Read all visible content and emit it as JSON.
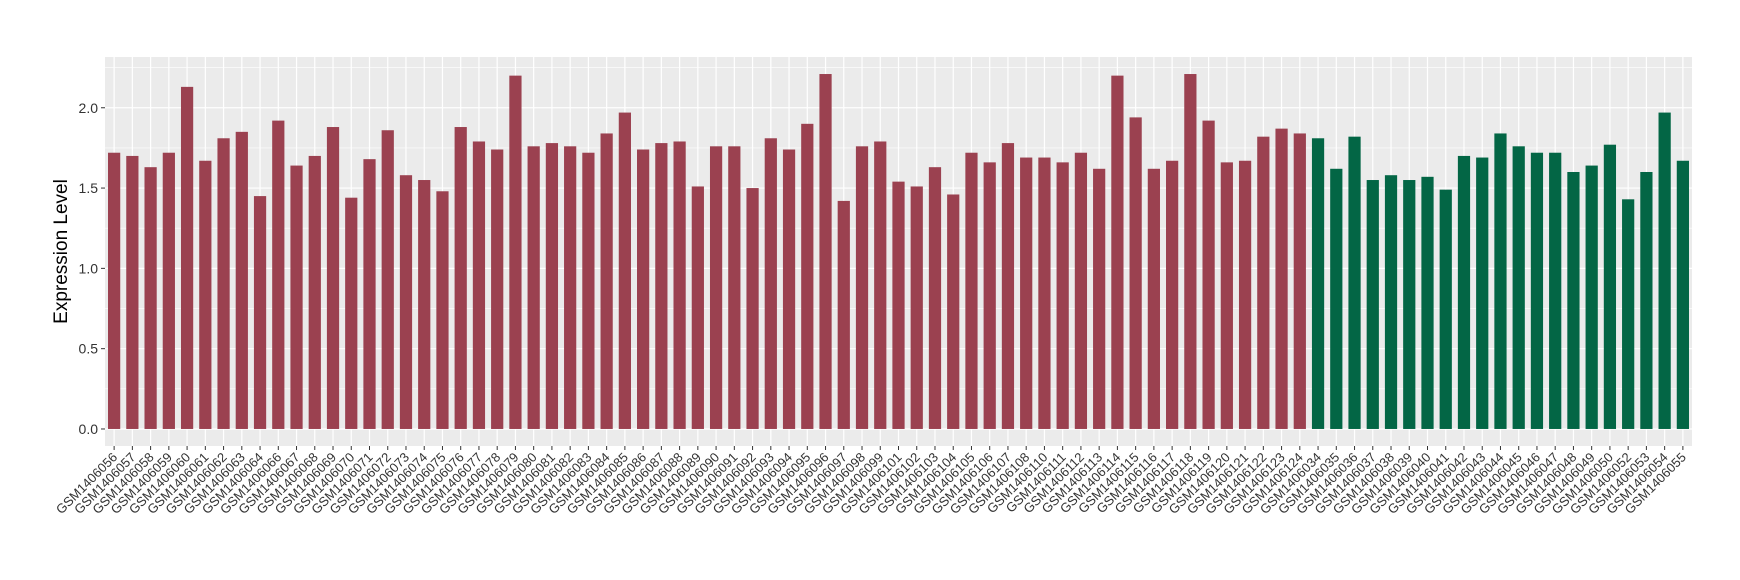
{
  "chart_data": {
    "type": "bar",
    "title": "",
    "xlabel": "",
    "ylabel": "Expression Level",
    "ylim": [
      -0.106,
      2.316
    ],
    "yticks": [
      "0.0",
      "0.5",
      "1.0",
      "1.5",
      "2.0"
    ],
    "grid": true,
    "legend": "none",
    "colors": {
      "group1": "#9B4150",
      "group2": "#036645",
      "panel": "#EBEBEB",
      "grid": "#FFFFFF"
    },
    "categories": [
      "GSM1406056",
      "GSM1406057",
      "GSM1406058",
      "GSM1406059",
      "GSM1406060",
      "GSM1406061",
      "GSM1406062",
      "GSM1406063",
      "GSM1406064",
      "GSM1406066",
      "GSM1406067",
      "GSM1406068",
      "GSM1406069",
      "GSM1406070",
      "GSM1406071",
      "GSM1406072",
      "GSM1406073",
      "GSM1406074",
      "GSM1406075",
      "GSM1406076",
      "GSM1406077",
      "GSM1406078",
      "GSM1406079",
      "GSM1406080",
      "GSM1406081",
      "GSM1406082",
      "GSM1406083",
      "GSM1406084",
      "GSM1406085",
      "GSM1406086",
      "GSM1406087",
      "GSM1406088",
      "GSM1406089",
      "GSM1406090",
      "GSM1406091",
      "GSM1406092",
      "GSM1406093",
      "GSM1406094",
      "GSM1406095",
      "GSM1406096",
      "GSM1406097",
      "GSM1406098",
      "GSM1406099",
      "GSM1406101",
      "GSM1406102",
      "GSM1406103",
      "GSM1406104",
      "GSM1406105",
      "GSM1406106",
      "GSM1406107",
      "GSM1406108",
      "GSM1406110",
      "GSM1406111",
      "GSM1406112",
      "GSM1406113",
      "GSM1406114",
      "GSM1406115",
      "GSM1406116",
      "GSM1406117",
      "GSM1406118",
      "GSM1406119",
      "GSM1406120",
      "GSM1406121",
      "GSM1406122",
      "GSM1406123",
      "GSM1406124",
      "GSM1406034",
      "GSM1406035",
      "GSM1406036",
      "GSM1406037",
      "GSM1406038",
      "GSM1406039",
      "GSM1406040",
      "GSM1406041",
      "GSM1406042",
      "GSM1406043",
      "GSM1406044",
      "GSM1406045",
      "GSM1406046",
      "GSM1406047",
      "GSM1406048",
      "GSM1406049",
      "GSM1406050",
      "GSM1406052",
      "GSM1406053",
      "GSM1406054",
      "GSM1406055"
    ],
    "values": [
      1.72,
      1.7,
      1.63,
      1.72,
      2.13,
      1.67,
      1.81,
      1.85,
      1.45,
      1.92,
      1.64,
      1.7,
      1.88,
      1.44,
      1.68,
      1.86,
      1.58,
      1.55,
      1.48,
      1.88,
      1.79,
      1.74,
      2.2,
      1.76,
      1.78,
      1.76,
      1.72,
      1.84,
      1.97,
      1.74,
      1.78,
      1.79,
      1.51,
      1.76,
      1.76,
      1.5,
      1.81,
      1.74,
      1.9,
      2.21,
      1.42,
      1.76,
      1.79,
      1.54,
      1.51,
      1.63,
      1.46,
      1.72,
      1.66,
      1.78,
      1.69,
      1.69,
      1.66,
      1.72,
      1.62,
      2.2,
      1.94,
      1.62,
      1.67,
      2.21,
      1.92,
      1.66,
      1.67,
      1.82,
      1.87,
      1.84,
      1.81,
      1.62,
      1.82,
      1.55,
      1.58,
      1.55,
      1.57,
      1.49,
      1.7,
      1.69,
      1.84,
      1.76,
      1.72,
      1.72,
      1.6,
      1.64,
      1.77,
      1.43,
      1.6,
      1.97,
      1.67
    ],
    "groups": [
      "group1",
      "group1",
      "group1",
      "group1",
      "group1",
      "group1",
      "group1",
      "group1",
      "group1",
      "group1",
      "group1",
      "group1",
      "group1",
      "group1",
      "group1",
      "group1",
      "group1",
      "group1",
      "group1",
      "group1",
      "group1",
      "group1",
      "group1",
      "group1",
      "group1",
      "group1",
      "group1",
      "group1",
      "group1",
      "group1",
      "group1",
      "group1",
      "group1",
      "group1",
      "group1",
      "group1",
      "group1",
      "group1",
      "group1",
      "group1",
      "group1",
      "group1",
      "group1",
      "group1",
      "group1",
      "group1",
      "group1",
      "group1",
      "group1",
      "group1",
      "group1",
      "group1",
      "group1",
      "group1",
      "group1",
      "group1",
      "group1",
      "group1",
      "group1",
      "group1",
      "group1",
      "group1",
      "group1",
      "group1",
      "group1",
      "group1",
      "group2",
      "group2",
      "group2",
      "group2",
      "group2",
      "group2",
      "group2",
      "group2",
      "group2",
      "group2",
      "group2",
      "group2",
      "group2",
      "group2",
      "group2",
      "group2",
      "group2",
      "group2",
      "group2",
      "group2",
      "group2"
    ]
  }
}
